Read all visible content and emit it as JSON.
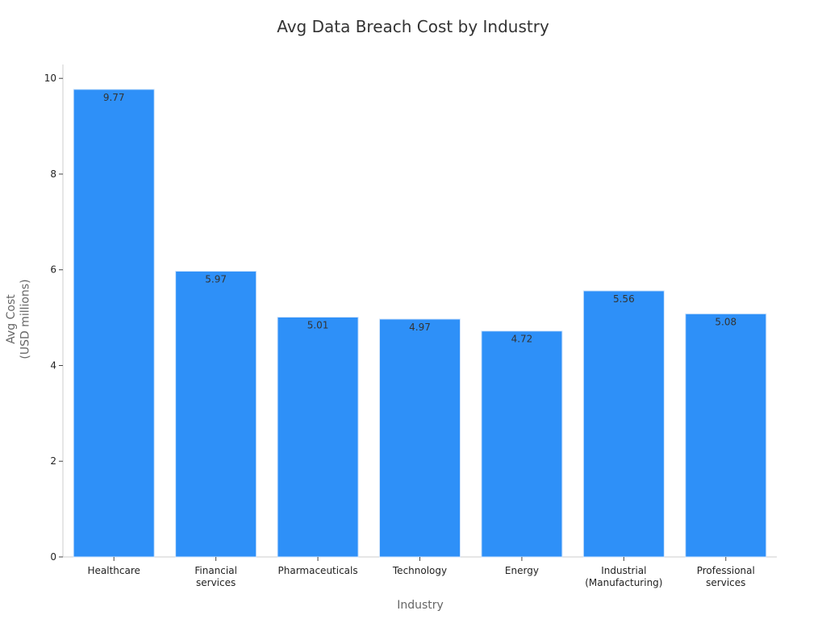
{
  "chart_data": {
    "type": "bar",
    "title": "Avg Data Breach Cost by Industry",
    "x_label": "Industry",
    "y_label": "Avg Cost\n(USD millions)",
    "categories": [
      "Healthcare",
      "Financial\nservices",
      "Pharmaceuticals",
      "Technology",
      "Energy",
      "Industrial\n(Manufacturing)",
      "Professional\nservices"
    ],
    "values": [
      9.77,
      5.97,
      5.01,
      4.97,
      4.72,
      5.56,
      5.08
    ],
    "color": "#2e90f8",
    "ylim": [
      0,
      10.29
    ],
    "yticks": [
      0,
      2,
      4,
      6,
      8,
      10
    ],
    "grid": false
  }
}
